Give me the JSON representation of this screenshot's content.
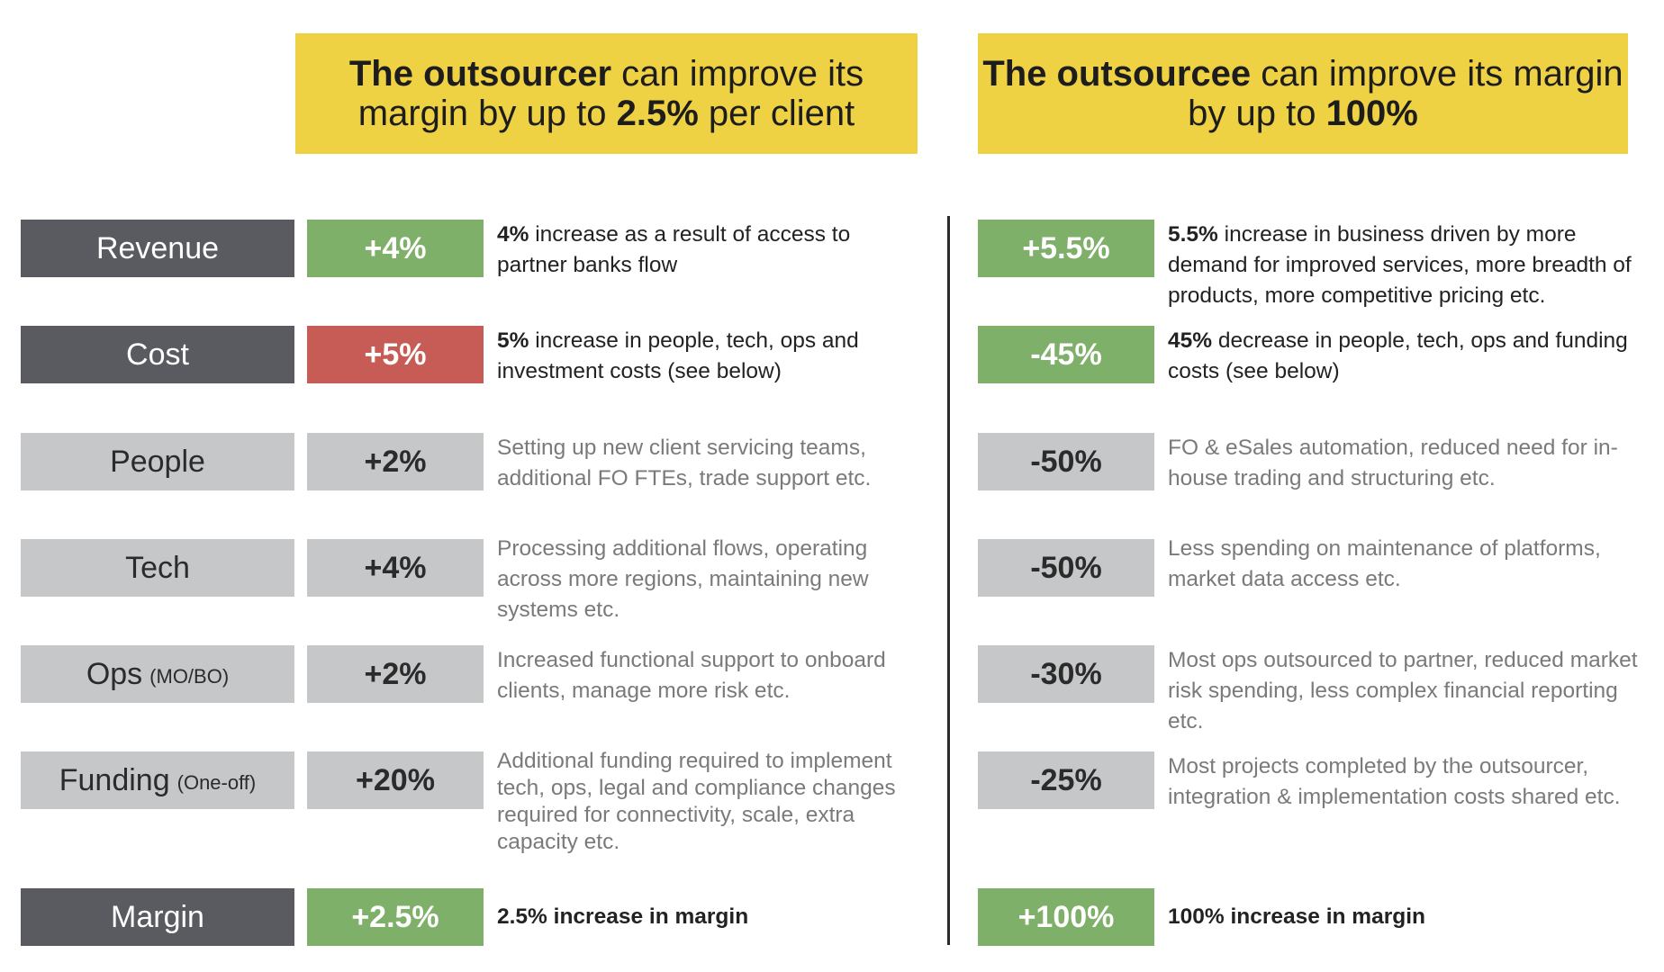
{
  "headers": {
    "left": {
      "bold": "The outsourcer",
      "mid": " can improve its margin by up to ",
      "value": "2.5%",
      "tail": " per client"
    },
    "right": {
      "bold": "The outsourcee",
      "mid": " can improve its margin by up to ",
      "value": "100%",
      "tail": ""
    }
  },
  "colors": {
    "yellow": "#efd144",
    "dark_label": "#595b60",
    "light_gray": "#c6c7c9",
    "green": "#7fb069",
    "red": "#c75b55"
  },
  "rows": [
    {
      "label": "Revenue",
      "sub": "",
      "left": {
        "value": "+4%",
        "lead": "4%",
        "text": " increase as a result of access to partner banks flow"
      },
      "right": {
        "value": "+5.5%",
        "lead": "5.5%",
        "text": " increase in business driven by more demand for improved services, more breadth of products, more competitive pricing etc."
      }
    },
    {
      "label": "Cost",
      "sub": "",
      "left": {
        "value": "+5%",
        "lead": "5%",
        "text": " increase in people, tech, ops and investment costs (see below)"
      },
      "right": {
        "value": "-45%",
        "lead": "45%",
        "text": " decrease in people, tech, ops and funding costs (see below)"
      }
    },
    {
      "label": "People",
      "sub": "",
      "left": {
        "value": "+2%",
        "lead": "",
        "text": "Setting up new client servicing teams, additional FO FTEs, trade support etc."
      },
      "right": {
        "value": "-50%",
        "lead": "",
        "text": "FO & eSales automation, reduced need for in-house trading and structuring etc."
      }
    },
    {
      "label": "Tech",
      "sub": "",
      "left": {
        "value": "+4%",
        "lead": "",
        "text": "Processing additional flows, operating across more regions, maintaining new systems etc."
      },
      "right": {
        "value": "-50%",
        "lead": "",
        "text": "Less spending on maintenance of platforms,  market data access etc."
      }
    },
    {
      "label": "Ops",
      "sub": "(MO/BO)",
      "left": {
        "value": "+2%",
        "lead": "",
        "text": "Increased functional support to onboard clients, manage more risk etc."
      },
      "right": {
        "value": "-30%",
        "lead": "",
        "text": "Most ops outsourced to partner, reduced market risk spending, less complex financial reporting etc."
      }
    },
    {
      "label": "Funding",
      "sub": "(One-off)",
      "left": {
        "value": "+20%",
        "lead": "",
        "text": "Additional funding required to implement tech, ops, legal and compliance changes required for connectivity, scale, extra capacity etc."
      },
      "right": {
        "value": "-25%",
        "lead": "",
        "text": "Most projects completed by the outsourcer, integration & implementation costs shared etc."
      }
    },
    {
      "label": "Margin",
      "sub": "",
      "left": {
        "value": "+2.5%",
        "lead": "",
        "text": "2.5% increase in margin"
      },
      "right": {
        "value": "+100%",
        "lead": "",
        "text": "100% increase in margin"
      }
    }
  ]
}
